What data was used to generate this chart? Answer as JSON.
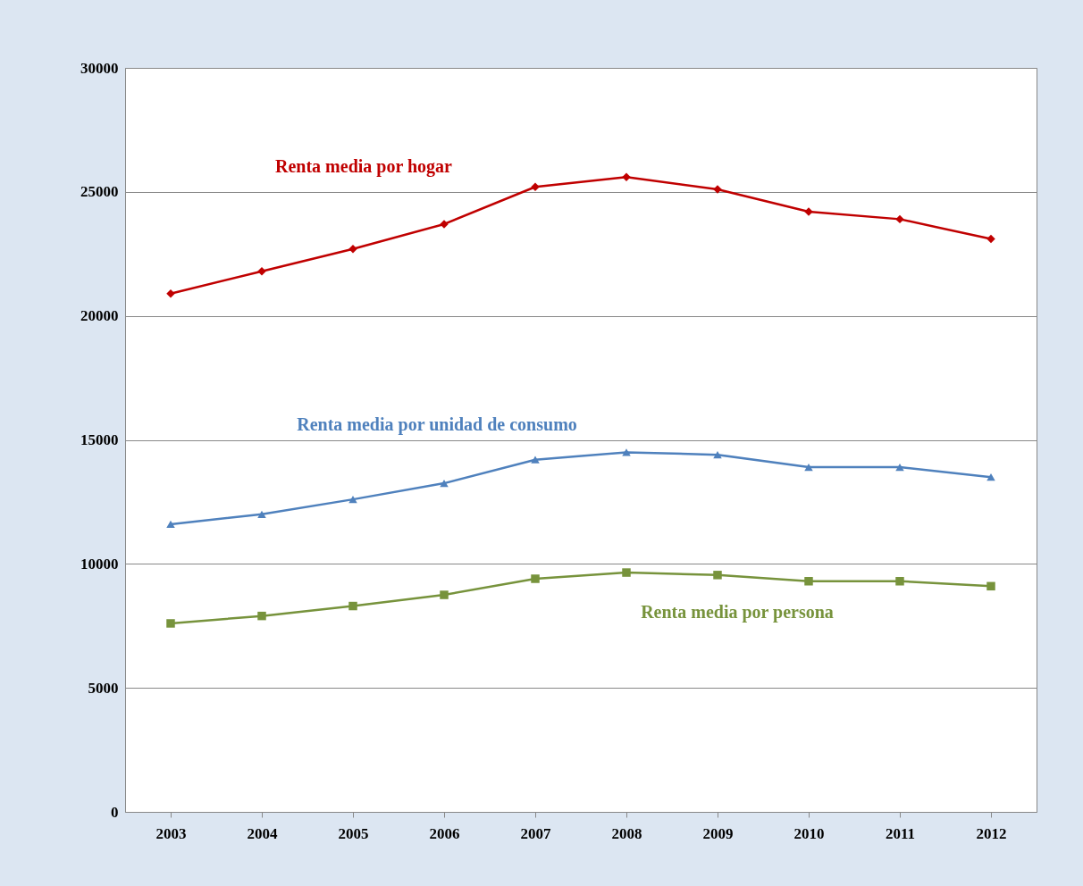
{
  "chart_data": {
    "type": "line",
    "categories": [
      "2003",
      "2004",
      "2005",
      "2006",
      "2007",
      "2008",
      "2009",
      "2010",
      "2011",
      "2012"
    ],
    "series": [
      {
        "name": "Renta media por hogar",
        "color": "#c00000",
        "marker": "diamond",
        "values": [
          20900,
          21800,
          22700,
          23700,
          25200,
          25600,
          25100,
          24200,
          23900,
          23100
        ]
      },
      {
        "name": "Renta media por unidad de consumo",
        "color": "#4f81bd",
        "marker": "triangle",
        "values": [
          11600,
          12000,
          12600,
          13250,
          14200,
          14500,
          14400,
          13900,
          13900,
          13500
        ]
      },
      {
        "name": "Renta media por persona",
        "color": "#77933c",
        "marker": "square",
        "values": [
          7600,
          7900,
          8300,
          8750,
          9400,
          9650,
          9550,
          9300,
          9300,
          9100
        ]
      }
    ],
    "ylim": [
      0,
      30000
    ],
    "yticks": [
      0,
      5000,
      10000,
      15000,
      20000,
      25000,
      30000
    ],
    "grid": "y",
    "line_style": "solid"
  }
}
